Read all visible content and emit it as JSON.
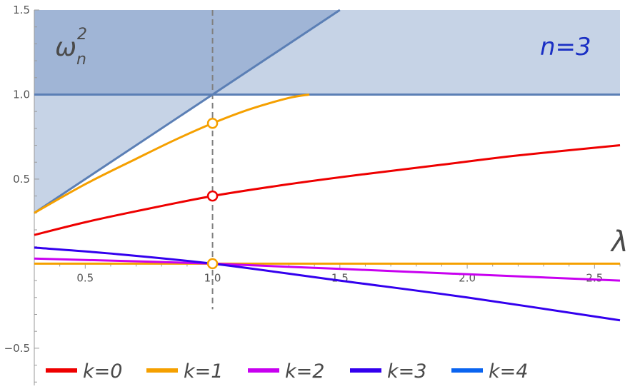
{
  "chart_data": {
    "type": "line",
    "xlabel": "λ",
    "ylabel_main": "ω",
    "ylabel_sub": "n",
    "ylabel_sup": "2",
    "annotation": "n=3",
    "xlim": [
      0.3,
      2.6
    ],
    "ylim": [
      -0.72,
      1.5
    ],
    "x_ticks": [
      {
        "value": 0.5,
        "label": "0.5"
      },
      {
        "value": 1.0,
        "label": "1.0"
      },
      {
        "value": 1.5,
        "label": "1.5"
      },
      {
        "value": 2.0,
        "label": "2.0"
      },
      {
        "value": 2.5,
        "label": "2.5"
      }
    ],
    "y_ticks": [
      {
        "value": 1.5,
        "label": "1.5"
      },
      {
        "value": 1.0,
        "label": "1.0"
      },
      {
        "value": 0.5,
        "label": "0.5"
      },
      {
        "value": -0.5,
        "label": "−0.5"
      }
    ],
    "grid": false,
    "legend_position": "bottom",
    "vline_x": 1.0,
    "shaded_region": {
      "color": "#c6d3e6",
      "y_low": 1.0,
      "y_high": 1.5
    },
    "diagonal_line": {
      "x": [
        0.3,
        1.5
      ],
      "y": [
        0.3,
        1.5
      ]
    },
    "horizontal_line": {
      "y": 1.0
    },
    "series": [
      {
        "name": "k=0",
        "color": "#ee0000",
        "x": [
          0.3,
          0.5,
          0.7,
          1.0,
          1.3,
          1.6,
          1.9,
          2.2,
          2.6
        ],
        "y": [
          0.17,
          0.245,
          0.31,
          0.4,
          0.47,
          0.53,
          0.585,
          0.64,
          0.7
        ]
      },
      {
        "name": "k=1",
        "color": "#f5a000",
        "x": [
          0.3,
          0.5,
          0.7,
          0.85,
          1.0,
          1.15,
          1.3,
          1.38
        ],
        "y": [
          0.3,
          0.47,
          0.62,
          0.73,
          0.83,
          0.915,
          0.98,
          1.0
        ]
      },
      {
        "name": "k=1-zero",
        "color": "#f5a000",
        "x": [
          0.3,
          2.6
        ],
        "y": [
          0.0,
          0.0
        ]
      },
      {
        "name": "k=2",
        "color": "#c800f0",
        "x": [
          0.3,
          1.0,
          1.8,
          2.6
        ],
        "y": [
          0.03,
          0.0,
          -0.05,
          -0.1
        ]
      },
      {
        "name": "k=3",
        "color": "#3300ee",
        "x": [
          0.3,
          0.6,
          1.0,
          1.5,
          2.0,
          2.6
        ],
        "y": [
          0.095,
          0.06,
          0.0,
          -0.1,
          -0.2,
          -0.335
        ]
      }
    ],
    "markers": [
      {
        "x": 1.0,
        "y": 0.83,
        "color": "#f5a000"
      },
      {
        "x": 1.0,
        "y": 0.4,
        "color": "#ee0000"
      },
      {
        "x": 1.0,
        "y": 0.0,
        "color": "#f5a000"
      }
    ],
    "legend": [
      {
        "label": "k=0",
        "color": "#ee0000"
      },
      {
        "label": "k=1",
        "color": "#f5a000"
      },
      {
        "label": "k=2",
        "color": "#c800f0"
      },
      {
        "label": "k=3",
        "color": "#3300ee"
      },
      {
        "label": "k=4",
        "color": "#0a64f0"
      }
    ]
  }
}
